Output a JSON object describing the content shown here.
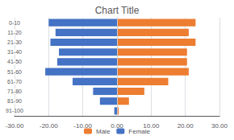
{
  "chart_data": {
    "type": "bar",
    "orientation": "horizontal",
    "title": "Chart Title",
    "categories": [
      "0-10",
      "11-20",
      "21-30",
      "31-40",
      "41-50",
      "51-60",
      "61-70",
      "71-80",
      "81-90",
      "91-100"
    ],
    "series": [
      {
        "name": "Male",
        "color": "#ED7D31",
        "values": [
          23,
          21,
          23,
          20.5,
          20.5,
          21,
          15,
          8,
          3.5,
          0.5
        ]
      },
      {
        "name": "Female",
        "color": "#4472C4",
        "values": [
          -20,
          -18,
          -19.5,
          -17,
          -17.5,
          -21,
          -13,
          -7,
          -5,
          -0.8
        ]
      }
    ],
    "xlim": [
      -30,
      30
    ],
    "xticks": [
      {
        "value": -30,
        "label": "-30.00"
      },
      {
        "value": -20,
        "label": "-20.00"
      },
      {
        "value": -10,
        "label": "-10.00"
      },
      {
        "value": 0,
        "label": "0.00"
      },
      {
        "value": 10,
        "label": "10.00"
      },
      {
        "value": 20,
        "label": "20.00"
      },
      {
        "value": 30,
        "label": "30.00"
      }
    ],
    "grid": true,
    "legend": "bottom"
  }
}
